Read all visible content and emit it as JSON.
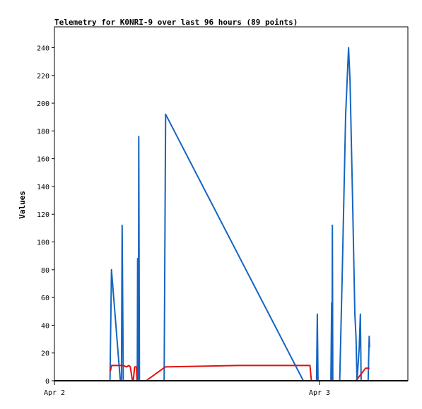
{
  "chart_data": {
    "type": "line",
    "title": "Telemetry for K0NRI-9 over last 96 hours (89 points)",
    "xlabel": "",
    "ylabel": "Values",
    "ylim": [
      0,
      255
    ],
    "xlim": [
      0,
      96
    ],
    "y_ticks": [
      0,
      20,
      40,
      60,
      80,
      100,
      120,
      140,
      160,
      180,
      200,
      220,
      240
    ],
    "x_ticks": [
      {
        "label": "Apr 2",
        "x": 0
      },
      {
        "label": "Apr 3",
        "x": 72
      }
    ],
    "grid": false,
    "legend": "none",
    "series": [
      {
        "color": "#1565c0",
        "points": [
          [
            15.1,
            0
          ],
          [
            15.5,
            80
          ],
          [
            17.9,
            0
          ],
          [
            18.2,
            0
          ],
          [
            18.4,
            112
          ],
          [
            18.7,
            0
          ],
          [
            22.5,
            0
          ],
          [
            22.6,
            88
          ],
          [
            22.8,
            0
          ],
          [
            22.9,
            176
          ],
          [
            23.1,
            0
          ],
          [
            29.8,
            0
          ],
          [
            30.2,
            192
          ],
          [
            67.6,
            0
          ],
          [
            71.2,
            0
          ],
          [
            71.4,
            48
          ],
          [
            71.6,
            0
          ],
          [
            75.1,
            0
          ],
          [
            75.3,
            56
          ],
          [
            75.4,
            0
          ],
          [
            75.5,
            112
          ],
          [
            75.6,
            0
          ],
          [
            77.5,
            0
          ],
          [
            78.2,
            80
          ],
          [
            79.1,
            192
          ],
          [
            79.9,
            240
          ],
          [
            80.3,
            216
          ],
          [
            81.0,
            128
          ],
          [
            81.6,
            48
          ],
          [
            81.9,
            32
          ],
          [
            82.2,
            0
          ],
          [
            82.8,
            24
          ],
          [
            83.1,
            48
          ],
          [
            83.3,
            0
          ],
          [
            85.2,
            0
          ],
          [
            85.5,
            32
          ],
          [
            85.6,
            24
          ]
        ]
      },
      {
        "color": "#e01010",
        "points": [
          [
            15.2,
            7
          ],
          [
            15.5,
            11
          ],
          [
            18.7,
            11
          ],
          [
            19.6,
            10
          ],
          [
            20.2,
            11
          ],
          [
            20.6,
            10
          ],
          [
            21.2,
            0
          ],
          [
            21.4,
            0
          ],
          [
            21.8,
            10
          ],
          [
            22.3,
            10
          ],
          [
            22.4,
            0
          ],
          [
            24.9,
            0
          ],
          [
            30.1,
            10
          ],
          [
            50.0,
            11
          ],
          [
            67.0,
            11
          ],
          [
            69.4,
            11
          ],
          [
            69.8,
            0
          ],
          [
            81.9,
            0
          ],
          [
            84.5,
            9
          ],
          [
            85.6,
            9
          ]
        ]
      },
      {
        "color": "#000000",
        "points": [
          [
            0,
            0
          ],
          [
            96,
            0
          ]
        ]
      }
    ]
  }
}
